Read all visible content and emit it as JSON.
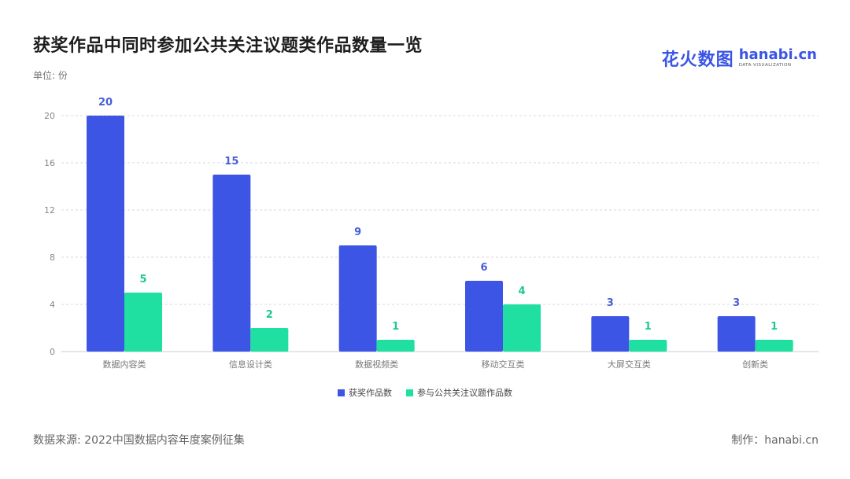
{
  "title": "获奖作品中同时参加公共关注议题类作品数量一览",
  "unit_label": "单位: 份",
  "logo": {
    "cn": "花火数图",
    "en": "hanabi.cn",
    "en_sub": "DATA·VISUALIZATION"
  },
  "footer": {
    "source": "数据来源: 2022中国数据内容年度案例征集",
    "credit": "制作：hanabi.cn"
  },
  "colors": {
    "series1": "#3c55e4",
    "series2": "#1fe0a0",
    "grid": "#d9d9d9",
    "axis": "#cccccc",
    "label1": "#4a5fd6",
    "label2": "#1ec98e"
  },
  "chart_data": {
    "type": "bar",
    "categories": [
      "数据内容类",
      "信息设计类",
      "数据视频类",
      "移动交互类",
      "大屏交互类",
      "创新类"
    ],
    "series": [
      {
        "name": "获奖作品数",
        "values": [
          20,
          15,
          9,
          6,
          3,
          3
        ]
      },
      {
        "name": "参与公共关注议题作品数",
        "values": [
          5,
          2,
          1,
          4,
          1,
          1
        ]
      }
    ],
    "ylim": [
      0,
      20
    ],
    "yticks": [
      0,
      4,
      8,
      12,
      16,
      20
    ],
    "grid": true,
    "legend": "bottom-center"
  }
}
